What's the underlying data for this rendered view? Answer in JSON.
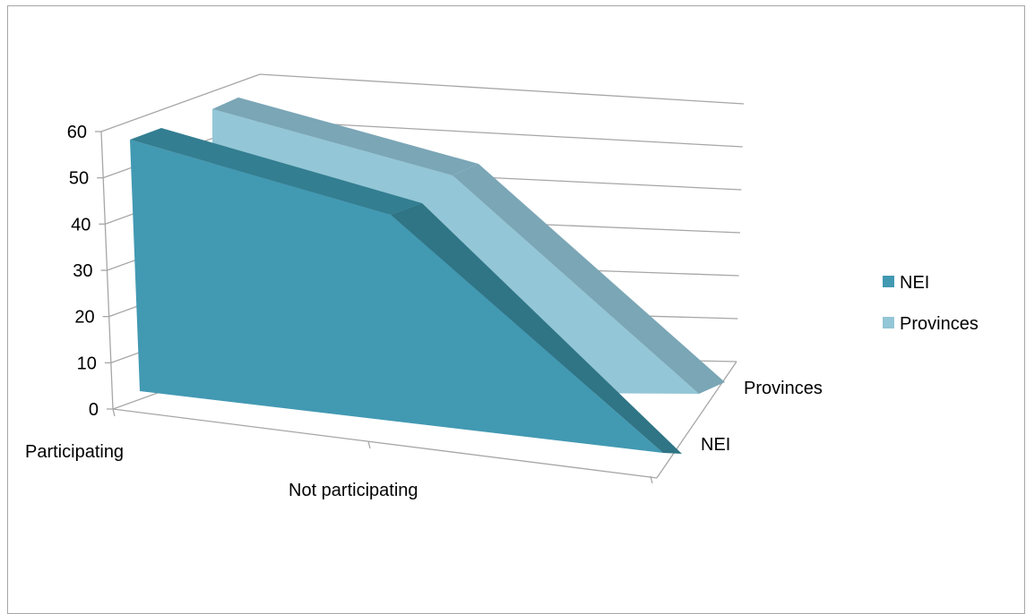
{
  "chart_data": {
    "type": "area",
    "style": "3d",
    "categories": [
      "Participating",
      "Not participating"
    ],
    "series": [
      {
        "name": "NEI",
        "values": [
          58,
          0
        ],
        "color": "#4299B2",
        "top_color": "#337E91",
        "edge_color": "#2F7586"
      },
      {
        "name": "Provinces",
        "values": [
          61,
          0
        ],
        "color": "#93C6D6",
        "top_color": "#7AA6B6",
        "edge_color": "#73A0AE"
      }
    ],
    "y_ticks": [
      "0",
      "10",
      "20",
      "30",
      "40",
      "50",
      "60"
    ],
    "ylim": [
      0,
      60
    ],
    "grid": true,
    "legend": {
      "position": "right"
    },
    "depth_axis_labels": [
      "NEI",
      "Provinces"
    ]
  }
}
